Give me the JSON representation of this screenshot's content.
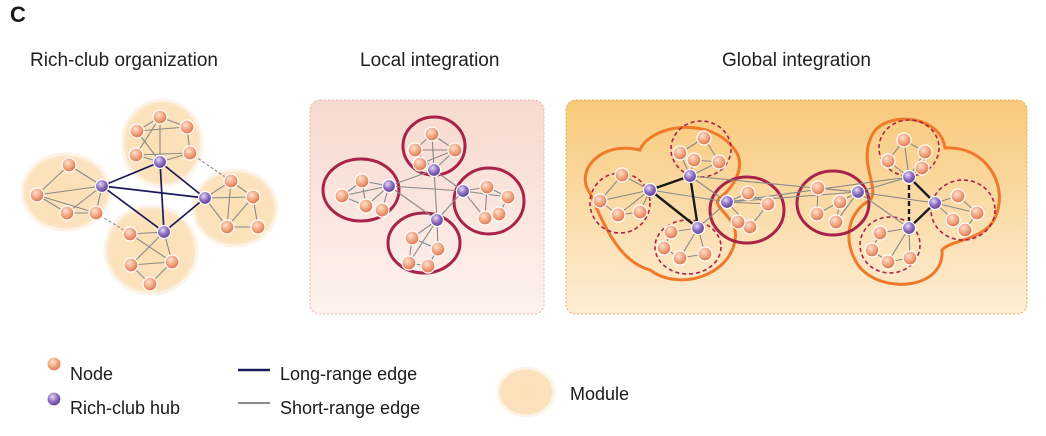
{
  "panel_letter": "C",
  "titles": {
    "rich_club": "Rich-club organization",
    "local": "Local integration",
    "global": "Global integration"
  },
  "legend": {
    "node": "Node",
    "hub": "Rich-club hub",
    "long_edge": "Long-range edge",
    "short_edge": "Short-range edge",
    "module": "Module"
  },
  "colors": {
    "node": "#f0a07a",
    "hub": "#8e6cc0",
    "long_edge": "#1c1a5a",
    "short_edge": "#8a8a8a",
    "module": "#fbe0b4",
    "local_ring": "#a8234a",
    "global_ring": "#ee7a2a"
  }
}
